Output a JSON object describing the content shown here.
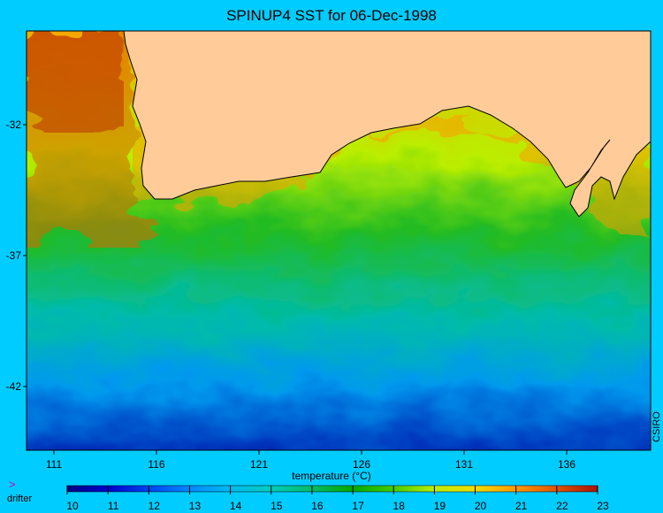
{
  "title": "SPINUP4 SST for 06-Dec-1998",
  "credit": "CSIRO",
  "map": {
    "lon_ticks": [
      "111",
      "116",
      "121",
      "126",
      "131",
      "136"
    ],
    "lat_ticks": [
      "-32",
      "-37",
      "-42"
    ],
    "colors": {
      "land": "#ffcc99",
      "frame_bg": "#00ccff",
      "coast": "#000000"
    }
  },
  "legend": {
    "drifter_symbol": ">",
    "drifter_label": "drifter",
    "drifter_color": "#cc00cc",
    "colorbar_title": "temperature (°C)",
    "colorbar_ticks": [
      "10",
      "11",
      "12",
      "13",
      "14",
      "15",
      "16",
      "17",
      "18",
      "19",
      "20",
      "21",
      "22",
      "23"
    ],
    "colorbar_stops": [
      "#000080",
      "#0000cc",
      "#0044ee",
      "#0088ff",
      "#00bbee",
      "#00ccbb",
      "#00bb66",
      "#00aa00",
      "#44cc00",
      "#bbee00",
      "#eedd00",
      "#ff9900",
      "#dd5500",
      "#aa1100"
    ]
  }
}
